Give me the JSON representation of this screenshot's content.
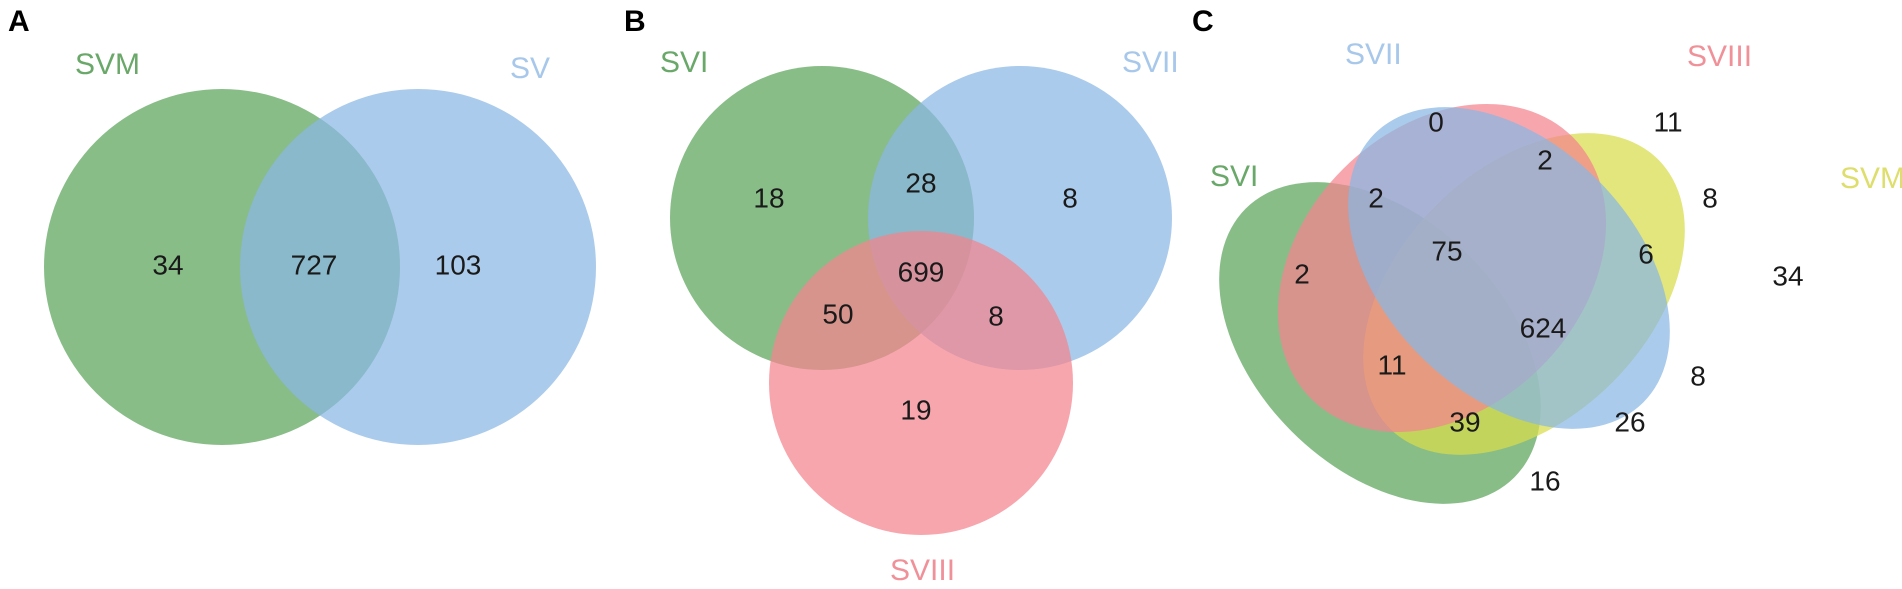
{
  "colors": {
    "green": "#5aa35a",
    "blue": "#89b7e3",
    "pink": "#f4848e",
    "yellow": "#d8dc4a",
    "green_label": "#6aa86a",
    "blue_label": "#a7c8ea",
    "pink_label": "#f0919a",
    "yellow_label": "#dede6c"
  },
  "panels": {
    "A": {
      "letter": "A",
      "sets": {
        "svm": "SVM",
        "sv": "SV"
      },
      "counts": {
        "svm_only": "34",
        "both": "727",
        "sv_only": "103"
      }
    },
    "B": {
      "letter": "B",
      "sets": {
        "svi": "SVI",
        "svii": "SVII",
        "sviii": "SVIII"
      },
      "counts": {
        "svi_only": "18",
        "svi_svii": "28",
        "svii_only": "8",
        "all": "699",
        "svi_sviii": "50",
        "svii_sviii": "8",
        "sviii_only": "19"
      }
    },
    "C": {
      "letter": "C",
      "sets": {
        "svi": "SVI",
        "svii": "SVII",
        "sviii": "SVIII",
        "svm": "SVM"
      },
      "counts": {
        "svii_only": "0",
        "sviii_only": "11",
        "svii_sviii": "2",
        "svi_svii": "2",
        "sviii_svm": "8",
        "svi_only": "2",
        "svi_svii_sviii": "75",
        "svii_sviii_svm": "6",
        "svm_only": "34",
        "all": "624",
        "svi_sviii": "11",
        "svii_svm": "8",
        "svi_sviii_svm": "39",
        "svi_svii_svm": "26",
        "svi_svm": "16"
      }
    }
  }
}
